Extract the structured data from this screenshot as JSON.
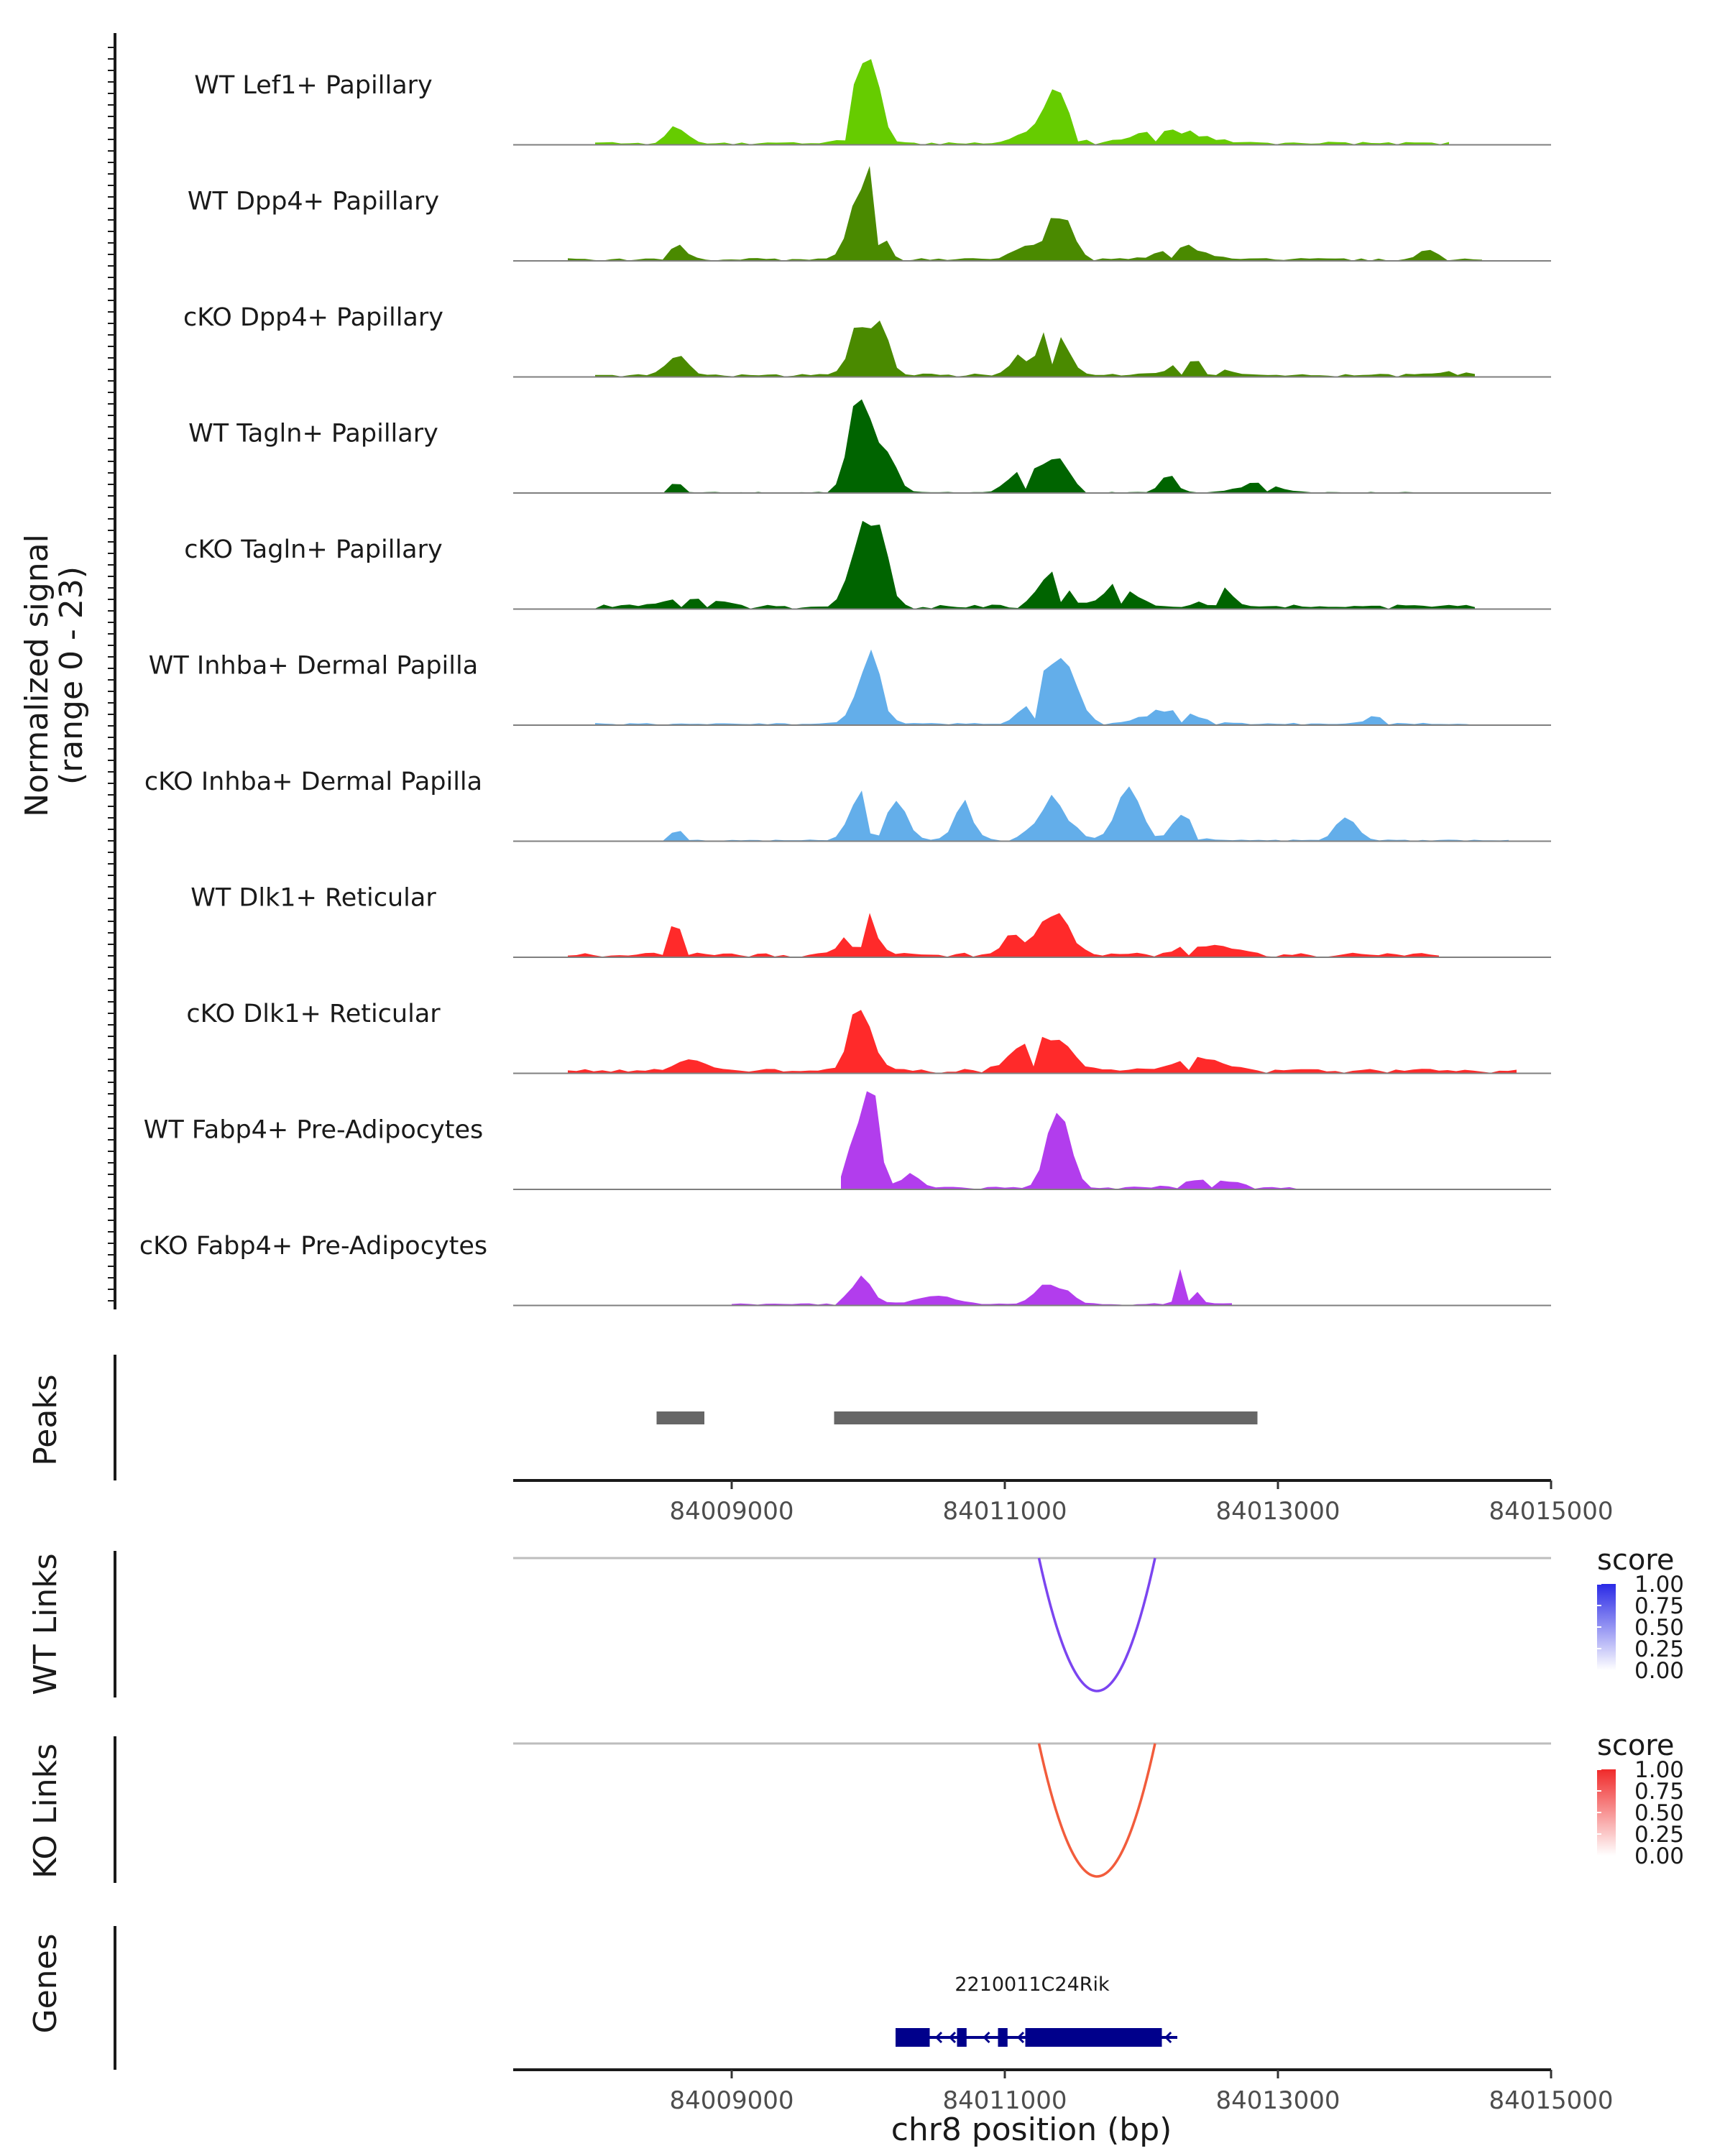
{
  "colors": {
    "WT Lef1+ Papillary": "#66cc00",
    "WT Dpp4+ Papillary": "#4a8a00",
    "cKO Dpp4+ Papillary": "#4a8a00",
    "WT Tagln+ Papillary": "#006400",
    "cKO Tagln+ Papillary": "#006400",
    "WT Inhba+ Dermal Papilla": "#63aeea",
    "cKO Inhba+ Dermal Papilla": "#63aeea",
    "WT Dlk1+ Reticular": "#ff2a2a",
    "cKO Dlk1+ Reticular": "#ff2a2a",
    "WT Fabp4+ Pre-Adipocytes": "#b23ded",
    "cKO Fabp4+ Pre-Adipocytes": "#b23ded",
    "peak": "#666666",
    "gene": "#00008b",
    "wt_link": "#7b45f0",
    "ko_link": "#f25c3c"
  },
  "chart_data": {
    "type": "genome-browser coverage + peaks + links + genes",
    "coverage": {
      "ylabel": "Normalized signal\n(range 0 - 23)",
      "ylabel_line1": "Normalized signal",
      "ylabel_line2": "(range 0 - 23)",
      "range": [
        0,
        23
      ],
      "tracks": [
        {
          "name": "WT Lef1+ Papillary",
          "region": [
            84008000,
            84014300
          ],
          "peaks": [
            [
              84008600,
              4,
              90
            ],
            [
              84009950,
              16,
              100
            ],
            [
              84010050,
              14,
              80
            ],
            [
              84011400,
              12,
              120
            ],
            [
              84011200,
              3,
              150
            ],
            [
              84012200,
              3,
              300
            ]
          ],
          "base": 0.6
        },
        {
          "name": "WT Dpp4+ Papillary",
          "region": [
            84007800,
            84014500
          ],
          "peaks": [
            [
              84008600,
              3,
              90
            ],
            [
              84009950,
              17,
              110
            ],
            [
              84010050,
              13,
              80
            ],
            [
              84011400,
              11,
              120
            ],
            [
              84011150,
              3,
              120
            ],
            [
              84012300,
              3,
              200
            ],
            [
              84014100,
              2,
              100
            ]
          ],
          "base": 0.5
        },
        {
          "name": "cKO Dpp4+ Papillary",
          "region": [
            84008000,
            84014500
          ],
          "peaks": [
            [
              84008600,
              4,
              110
            ],
            [
              84009950,
              12,
              110
            ],
            [
              84010100,
              9,
              80
            ],
            [
              84011350,
              12,
              130
            ],
            [
              84011100,
              4,
              80
            ],
            [
              84012400,
              3,
              220
            ],
            [
              84014300,
              1.5,
              80
            ]
          ],
          "base": 0.6
        },
        {
          "name": "WT Tagln+ Papillary",
          "region": [
            84008500,
            84014000
          ],
          "peaks": [
            [
              84009950,
              22,
              120
            ],
            [
              84010150,
              8,
              100
            ],
            [
              84011350,
              9,
              140
            ],
            [
              84011100,
              5,
              120
            ],
            [
              84012200,
              4,
              80
            ],
            [
              84008600,
              3,
              50
            ],
            [
              84012850,
              2,
              200
            ]
          ],
          "base": 0.2
        },
        {
          "name": "cKO Tagln+ Papillary",
          "region": [
            84008000,
            84014500
          ],
          "peaks": [
            [
              84009950,
              18,
              110
            ],
            [
              84010100,
              14,
              80
            ],
            [
              84011350,
              9,
              130
            ],
            [
              84011850,
              5,
              150
            ],
            [
              84012550,
              5,
              120
            ],
            [
              84008700,
              2,
              250
            ]
          ],
          "base": 0.8
        },
        {
          "name": "WT Inhba+ Dermal Papilla",
          "region": [
            84008000,
            84014500
          ],
          "peaks": [
            [
              84010000,
              16,
              120
            ],
            [
              84011400,
              17,
              160
            ],
            [
              84011150,
              3,
              100
            ],
            [
              84012200,
              3,
              250
            ],
            [
              84013700,
              1.5,
              100
            ]
          ],
          "base": 0.4
        },
        {
          "name": "cKO Inhba+ Dermal Papilla",
          "region": [
            84008500,
            84014700
          ],
          "peaks": [
            [
              84009950,
              12,
              110
            ],
            [
              84010200,
              8,
              120
            ],
            [
              84011350,
              9,
              160
            ],
            [
              84011900,
              13,
              120
            ],
            [
              84012300,
              7,
              100
            ],
            [
              84010700,
              8,
              100
            ],
            [
              84013500,
              6,
              100
            ],
            [
              84008600,
              3,
              50
            ]
          ],
          "base": 0.3
        },
        {
          "name": "WT Dlk1+ Reticular",
          "region": [
            84007800,
            84014200
          ],
          "peaks": [
            [
              84008600,
              7,
              90
            ],
            [
              84009950,
              13,
              120
            ],
            [
              84011350,
              10,
              150
            ],
            [
              84011050,
              5,
              80
            ],
            [
              84012500,
              2,
              300
            ]
          ],
          "base": 0.8
        },
        {
          "name": "cKO Dlk1+ Reticular",
          "region": [
            84007800,
            84014800
          ],
          "peaks": [
            [
              84009950,
              16,
              110
            ],
            [
              84011350,
              8,
              170
            ],
            [
              84011100,
              4,
              150
            ],
            [
              84012400,
              3,
              250
            ],
            [
              84008700,
              2,
              150
            ]
          ],
          "base": 0.8
        },
        {
          "name": "WT Fabp4+ Pre-Adipocytes",
          "region": [
            84009800,
            84013200
          ],
          "peaks": [
            [
              84009950,
              17,
              110
            ],
            [
              84010050,
              13,
              60
            ],
            [
              84011400,
              21,
              110
            ],
            [
              84010300,
              3,
              100
            ],
            [
              84012500,
              2,
              250
            ]
          ],
          "base": 0.5
        },
        {
          "name": "cKO Fabp4+ Pre-Adipocytes",
          "region": [
            84009000,
            84012700
          ],
          "peaks": [
            [
              84009950,
              6,
              110
            ],
            [
              84011350,
              5,
              150
            ],
            [
              84012300,
              8,
              100
            ],
            [
              84010500,
              2,
              200
            ]
          ],
          "base": 0.4
        }
      ]
    },
    "peaks": {
      "ylabel": "Peaks",
      "intervals": [
        [
          84008450,
          84008800
        ],
        [
          84009750,
          84012850
        ]
      ]
    },
    "x_axis": {
      "xlim": [
        84007400,
        84015000
      ],
      "ticks": [
        84009000,
        84011000,
        84013000,
        84015000
      ],
      "tick_labels": [
        "84009000",
        "84011000",
        "84013000",
        "84015000"
      ],
      "xlabel": "chr8 position (bp)"
    },
    "links": [
      {
        "ylabel": "WT Links",
        "color_key": "wt_link",
        "legend_color": "#2a2ae6",
        "from": 84011250,
        "to": 84012100,
        "score": 0.75,
        "legend_title": "score",
        "legend_ticks": [
          "1.00",
          "0.75",
          "0.50",
          "0.25",
          "0.00"
        ]
      },
      {
        "ylabel": "KO Links",
        "color_key": "ko_link",
        "legend_color": "#f02a2a",
        "from": 84011250,
        "to": 84012100,
        "score": 0.75,
        "legend_title": "score",
        "legend_ticks": [
          "1.00",
          "0.75",
          "0.50",
          "0.25",
          "0.00"
        ]
      }
    ],
    "genes": {
      "ylabel": "Genes",
      "items": [
        {
          "name": "2210011C24Rik",
          "start": 84010200,
          "end": 84012200,
          "strand": "-",
          "exons": [
            [
              84010200,
              84010450
            ],
            [
              84010650,
              84010720
            ],
            [
              84010950,
              84011020
            ],
            [
              84011150,
              84012150
            ]
          ]
        }
      ]
    }
  }
}
